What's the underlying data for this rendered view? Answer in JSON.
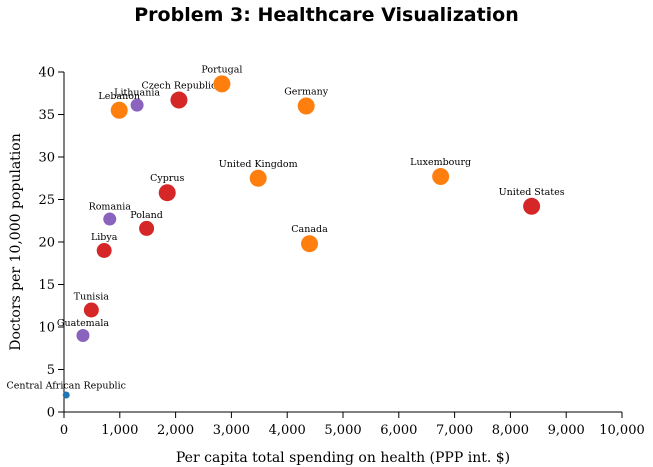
{
  "chart_data": {
    "type": "scatter",
    "title": "Problem 3: Healthcare Visualization",
    "xlabel": "Per capita total spending on health (PPP int. $)",
    "ylabel": "Doctors per 10,000 population",
    "xlim": [
      0,
      10000
    ],
    "ylim": [
      0,
      40
    ],
    "x_ticks": [
      0,
      1000,
      2000,
      3000,
      4000,
      5000,
      6000,
      7000,
      8000,
      9000,
      10000
    ],
    "x_tick_labels": [
      "0",
      "1,000",
      "2,000",
      "3,000",
      "4,000",
      "5,000",
      "6,000",
      "7,000",
      "8,000",
      "9,000",
      "10,000"
    ],
    "y_ticks": [
      0,
      5,
      10,
      15,
      20,
      25,
      30,
      35,
      40
    ],
    "y_tick_labels": [
      "0",
      "5",
      "10",
      "15",
      "20",
      "25",
      "30",
      "35",
      "40"
    ],
    "grid": false,
    "colors": {
      "purple": "#8a63be",
      "orange": "#ff7f0e",
      "red": "#d62728",
      "blue": "#1f77b4"
    },
    "points": [
      {
        "label": "Central African Republic",
        "x": 40,
        "y": 2,
        "color": "blue",
        "size": "small"
      },
      {
        "label": "Guatemala",
        "x": 340,
        "y": 9,
        "color": "purple",
        "size": "small"
      },
      {
        "label": "Tunisia",
        "x": 490,
        "y": 12,
        "color": "red",
        "size": "medium"
      },
      {
        "label": "Libya",
        "x": 720,
        "y": 19,
        "color": "red",
        "size": "medium"
      },
      {
        "label": "Romania",
        "x": 820,
        "y": 22.7,
        "color": "purple",
        "size": "small"
      },
      {
        "label": "Lebanon",
        "x": 990,
        "y": 35.5,
        "color": "orange",
        "size": "large"
      },
      {
        "label": "Lithuania",
        "x": 1310,
        "y": 36.1,
        "color": "purple",
        "size": "small"
      },
      {
        "label": "Poland",
        "x": 1480,
        "y": 21.6,
        "color": "red",
        "size": "medium"
      },
      {
        "label": "Cyprus",
        "x": 1850,
        "y": 25.8,
        "color": "red",
        "size": "large"
      },
      {
        "label": "Czech Republic",
        "x": 2060,
        "y": 36.7,
        "color": "red",
        "size": "large"
      },
      {
        "label": "Portugal",
        "x": 2830,
        "y": 38.6,
        "color": "orange",
        "size": "large"
      },
      {
        "label": "United Kingdom",
        "x": 3480,
        "y": 27.5,
        "color": "orange",
        "size": "large"
      },
      {
        "label": "Germany",
        "x": 4340,
        "y": 36,
        "color": "orange",
        "size": "large"
      },
      {
        "label": "Canada",
        "x": 4400,
        "y": 19.8,
        "color": "orange",
        "size": "large"
      },
      {
        "label": "Luxembourg",
        "x": 6750,
        "y": 27.7,
        "color": "orange",
        "size": "large"
      },
      {
        "label": "United States",
        "x": 8380,
        "y": 24.2,
        "color": "red",
        "size": "large"
      }
    ]
  }
}
